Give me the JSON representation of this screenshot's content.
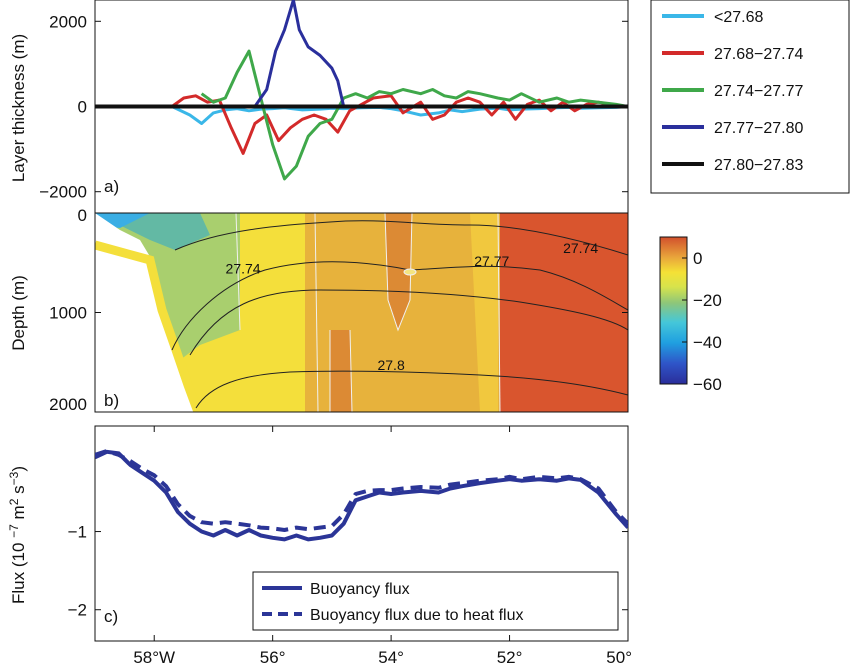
{
  "colors": {
    "lt_27_68": "#3ab7e8",
    "d27_68_27_74": "#d32a2a",
    "d27_74_27_77": "#3fa84a",
    "d27_77_27_80": "#2a2f9c",
    "d27_80_27_83": "#111111",
    "flux": "#2b3597"
  },
  "chart_data": [
    {
      "panel": "a",
      "type": "line",
      "panel_tag": "a)",
      "ylabel": "Layer thickness (m)",
      "ylim": [
        -2500,
        2500
      ],
      "yticks": [
        -2000,
        0,
        2000
      ],
      "ytick_labels": [
        "−2000",
        "0",
        "2000"
      ],
      "xlim": [
        59,
        50
      ],
      "series": [
        {
          "name": "<27.68",
          "color_key": "lt_27_68",
          "x": [
            57.7,
            57.4,
            57.2,
            57.0,
            56.8,
            56.6,
            56.4,
            56.2,
            56.0,
            55.8,
            55.5,
            55.2,
            55.0,
            54.8,
            54.5,
            54.2,
            54.0,
            53.8,
            53.5,
            53.2,
            53.0,
            52.8,
            52.5,
            52.2,
            52.0,
            51.8,
            51.5,
            51.2,
            51.0,
            50.8,
            50.5,
            50.2,
            50.0
          ],
          "y": [
            0,
            -200,
            -400,
            -150,
            -80,
            -50,
            -100,
            -60,
            -50,
            -30,
            -80,
            -60,
            -40,
            -50,
            -30,
            -20,
            -50,
            -100,
            -200,
            -150,
            -80,
            -120,
            -60,
            -40,
            -80,
            -60,
            -50,
            -30,
            -20,
            -40,
            -30,
            -20,
            0
          ]
        },
        {
          "name": "27.68−27.74",
          "color_key": "d27_68_27_74",
          "x": [
            57.7,
            57.5,
            57.3,
            57.1,
            56.9,
            56.7,
            56.5,
            56.3,
            56.1,
            55.9,
            55.7,
            55.5,
            55.3,
            55.1,
            54.9,
            54.7,
            54.5,
            54.3,
            54.0,
            53.8,
            53.5,
            53.3,
            53.1,
            52.9,
            52.7,
            52.5,
            52.3,
            52.1,
            51.9,
            51.7,
            51.5,
            51.3,
            51.1,
            50.9,
            50.7,
            50.5,
            50.3,
            50.0
          ],
          "y": [
            0,
            200,
            250,
            100,
            150,
            -500,
            -1100,
            -400,
            -200,
            -800,
            -500,
            -300,
            -200,
            -300,
            -600,
            -100,
            50,
            200,
            250,
            -150,
            100,
            -300,
            -200,
            100,
            200,
            100,
            -200,
            100,
            -300,
            50,
            150,
            -100,
            100,
            -100,
            50,
            100,
            50,
            0
          ]
        },
        {
          "name": "27.74−27.77",
          "color_key": "d27_74_27_77",
          "x": [
            57.2,
            57.0,
            56.8,
            56.6,
            56.4,
            56.2,
            56.0,
            55.8,
            55.6,
            55.4,
            55.2,
            55.0,
            54.8,
            54.6,
            54.4,
            54.2,
            54.0,
            53.8,
            53.5,
            53.3,
            53.1,
            52.9,
            52.7,
            52.5,
            52.2,
            52.0,
            51.8,
            51.5,
            51.2,
            51.0,
            50.8,
            50.5,
            50.2,
            50.0
          ],
          "y": [
            300,
            100,
            200,
            800,
            1300,
            200,
            -900,
            -1700,
            -1400,
            -700,
            -400,
            -300,
            200,
            300,
            200,
            350,
            300,
            400,
            300,
            400,
            250,
            200,
            350,
            300,
            200,
            150,
            300,
            100,
            200,
            100,
            150,
            100,
            50,
            0
          ]
        },
        {
          "name": "27.77−27.80",
          "color_key": "d27_77_27_80",
          "x": [
            56.3,
            56.1,
            55.95,
            55.8,
            55.65,
            55.55,
            55.4,
            55.2,
            55.0,
            54.9,
            54.8
          ],
          "y": [
            0,
            400,
            1300,
            1800,
            2500,
            1800,
            1400,
            1200,
            900,
            600,
            0
          ]
        },
        {
          "name": "27.80−27.83",
          "color_key": "d27_80_27_83",
          "x": [
            59,
            50
          ],
          "y": [
            0,
            0
          ]
        }
      ]
    },
    {
      "panel": "b",
      "type": "heatmap",
      "panel_tag": "b)",
      "ylabel": "Depth (m)",
      "ylim": [
        2000,
        0
      ],
      "yticks": [
        0,
        1000,
        2000
      ],
      "ytick_labels": [
        "0",
        "1000",
        "2000"
      ],
      "xlim": [
        59,
        50
      ],
      "colorbar": {
        "ticks": [
          0,
          -20,
          -40,
          -60
        ],
        "tick_labels": [
          "0",
          "−20",
          "−40",
          "−60"
        ],
        "range": [
          -60,
          10
        ]
      },
      "contour_labels": [
        {
          "text": "27.74",
          "x": 56.5,
          "depth": 560
        },
        {
          "text": "27.77",
          "x": 52.3,
          "depth": 480
        },
        {
          "text": "27.74",
          "x": 50.8,
          "depth": 350
        },
        {
          "text": "27.8",
          "x": 54.0,
          "depth": 1530
        }
      ]
    },
    {
      "panel": "c",
      "type": "line",
      "panel_tag": "c)",
      "ylabel": "Flux (10 −7 m 2 s −3 )",
      "ylim": [
        -2.4,
        0.35
      ],
      "yticks": [
        -2,
        -1
      ],
      "ytick_labels": [
        "−2",
        "−1"
      ],
      "xlim": [
        59,
        50
      ],
      "xticks": [
        58,
        56,
        54,
        52,
        50
      ],
      "xtick_labels": [
        "58°W",
        "56°",
        "54°",
        "52°",
        "50°"
      ],
      "series": [
        {
          "name": "Buoyancy flux",
          "style": "solid",
          "x": [
            59.0,
            58.8,
            58.6,
            58.4,
            58.2,
            58.0,
            57.8,
            57.6,
            57.4,
            57.2,
            57.0,
            56.8,
            56.6,
            56.4,
            56.2,
            56.0,
            55.8,
            55.6,
            55.4,
            55.2,
            55.0,
            54.8,
            54.6,
            54.4,
            54.2,
            54.0,
            53.8,
            53.5,
            53.2,
            53.0,
            52.8,
            52.5,
            52.2,
            52.0,
            51.8,
            51.5,
            51.2,
            51.0,
            50.8,
            50.5,
            50.2,
            50.0
          ],
          "y": [
            -0.05,
            0.02,
            0.0,
            -0.15,
            -0.25,
            -0.35,
            -0.5,
            -0.75,
            -0.9,
            -1.0,
            -1.05,
            -0.98,
            -1.05,
            -0.98,
            -1.05,
            -1.08,
            -1.1,
            -1.05,
            -1.1,
            -1.08,
            -1.05,
            -0.9,
            -0.6,
            -0.55,
            -0.5,
            -0.52,
            -0.5,
            -0.48,
            -0.5,
            -0.45,
            -0.42,
            -0.38,
            -0.35,
            -0.33,
            -0.35,
            -0.33,
            -0.35,
            -0.32,
            -0.34,
            -0.5,
            -0.78,
            -0.95
          ]
        },
        {
          "name": "Buoyancy flux due to heat flux",
          "style": "dashed",
          "x": [
            59.0,
            58.8,
            58.6,
            58.4,
            58.2,
            58.0,
            57.8,
            57.6,
            57.4,
            57.2,
            57.0,
            56.8,
            56.6,
            56.4,
            56.2,
            56.0,
            55.8,
            55.6,
            55.4,
            55.2,
            55.0,
            54.8,
            54.6,
            54.4,
            54.2,
            54.0,
            53.8,
            53.5,
            53.2,
            53.0,
            52.8,
            52.5,
            52.2,
            52.0,
            51.8,
            51.5,
            51.2,
            51.0,
            50.8,
            50.5,
            50.2,
            50.0
          ],
          "y": [
            -0.02,
            0.03,
            -0.02,
            -0.1,
            -0.2,
            -0.28,
            -0.42,
            -0.65,
            -0.8,
            -0.88,
            -0.9,
            -0.88,
            -0.9,
            -0.92,
            -0.95,
            -0.96,
            -0.98,
            -0.95,
            -0.97,
            -0.95,
            -0.93,
            -0.78,
            -0.52,
            -0.48,
            -0.47,
            -0.47,
            -0.45,
            -0.43,
            -0.44,
            -0.4,
            -0.38,
            -0.35,
            -0.33,
            -0.3,
            -0.33,
            -0.3,
            -0.32,
            -0.3,
            -0.33,
            -0.45,
            -0.75,
            -0.9
          ]
        }
      ]
    }
  ],
  "legend_a": {
    "placement": "right",
    "items": [
      {
        "label": "<27.68",
        "color_key": "lt_27_68"
      },
      {
        "label": "27.68−27.74",
        "color_key": "d27_68_27_74"
      },
      {
        "label": "27.74−27.77",
        "color_key": "d27_74_27_77"
      },
      {
        "label": "27.77−27.80",
        "color_key": "d27_77_27_80"
      },
      {
        "label": "27.80−27.83",
        "color_key": "d27_80_27_83"
      }
    ]
  },
  "legend_c": {
    "placement": "bottom-center",
    "items": [
      {
        "label": "Buoyancy flux",
        "style": "solid"
      },
      {
        "label": "Buoyancy flux due to heat flux",
        "style": "dashed"
      }
    ]
  }
}
